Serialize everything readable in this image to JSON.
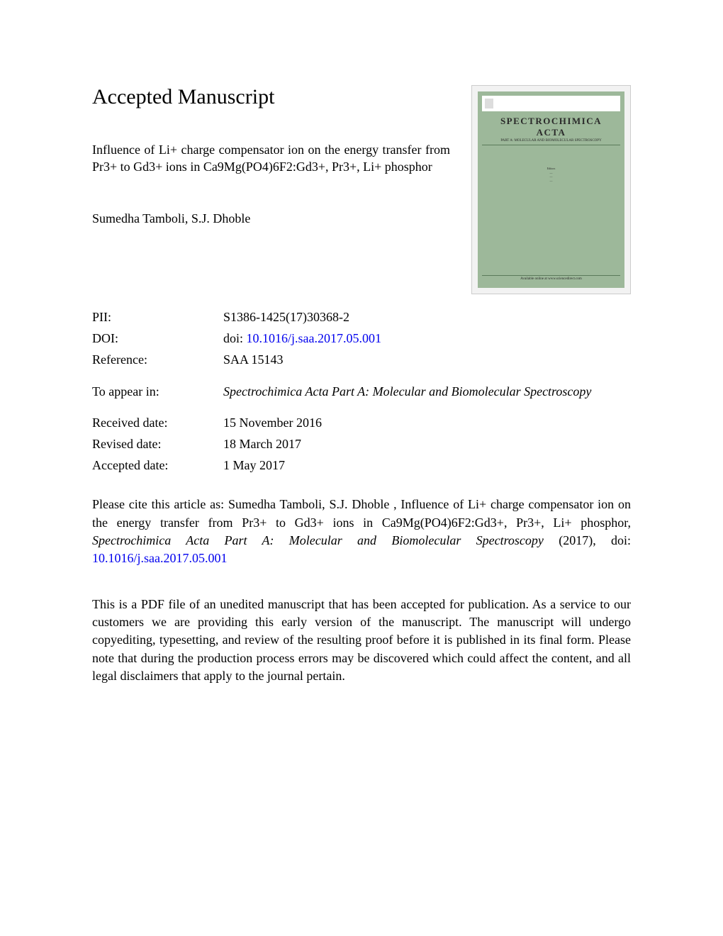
{
  "heading": "Accepted Manuscript",
  "article_title": "Influence of Li+ charge compensator ion on the energy transfer from Pr3+ to Gd3+ ions in Ca9Mg(PO4)6F2:Gd3+, Pr3+, Li+ phosphor",
  "authors": "Sumedha Tamboli, S.J. Dhoble",
  "thumbnail": {
    "journal_name_line1": "SPECTROCHIMICA",
    "journal_name_line2": "ACTA",
    "subtitle": "PART A: MOLECULAR AND BIOMOLECULAR SPECTROSCOPY",
    "background_color": "#9db89a",
    "editor_label": "Editors",
    "footer_text": "Available online at www.sciencedirect.com"
  },
  "metadata": {
    "pii": {
      "label": "PII:",
      "value": "S1386-1425(17)30368-2"
    },
    "doi": {
      "label": "DOI:",
      "prefix": "doi: ",
      "link": "10.1016/j.saa.2017.05.001"
    },
    "reference": {
      "label": "Reference:",
      "value": "SAA 15143"
    },
    "appear_in": {
      "label": "To appear in:",
      "value": "Spectrochimica Acta Part A: Molecular and Biomolecular Spectroscopy"
    },
    "received": {
      "label": "Received date:",
      "value": "15 November 2016"
    },
    "revised": {
      "label": "Revised date:",
      "value": "18 March 2017"
    },
    "accepted": {
      "label": "Accepted date:",
      "value": "1 May 2017"
    }
  },
  "citation": {
    "prefix": "Please cite this article as: Sumedha Tamboli, S.J. Dhoble , Influence of Li+ charge compensator ion on the energy transfer from Pr3+ to Gd3+ ions in Ca9Mg(PO4)6F2:Gd3+, Pr3+, Li+ phosphor, ",
    "journal": "Spectrochimica Acta Part A: Molecular and Biomolecular Spectroscopy",
    "year": " (2017), doi: ",
    "doi_link": "10.1016/j.saa.2017.05.001"
  },
  "disclaimer": "This is a PDF file of an unedited manuscript that has been accepted for publication. As a service to our customers we are providing this early version of the manuscript. The manuscript will undergo copyediting, typesetting, and review of the resulting proof before it is published in its final form. Please note that during the production process errors may be discovered which could affect the content, and all legal disclaimers that apply to the journal pertain.",
  "colors": {
    "text": "#000000",
    "link": "#0000ee",
    "background": "#ffffff",
    "thumb_bg": "#9db89a",
    "thumb_frame": "#f2f2f2"
  },
  "typography": {
    "heading_fontsize": 30,
    "body_fontsize": 18,
    "font_family": "Times New Roman"
  }
}
